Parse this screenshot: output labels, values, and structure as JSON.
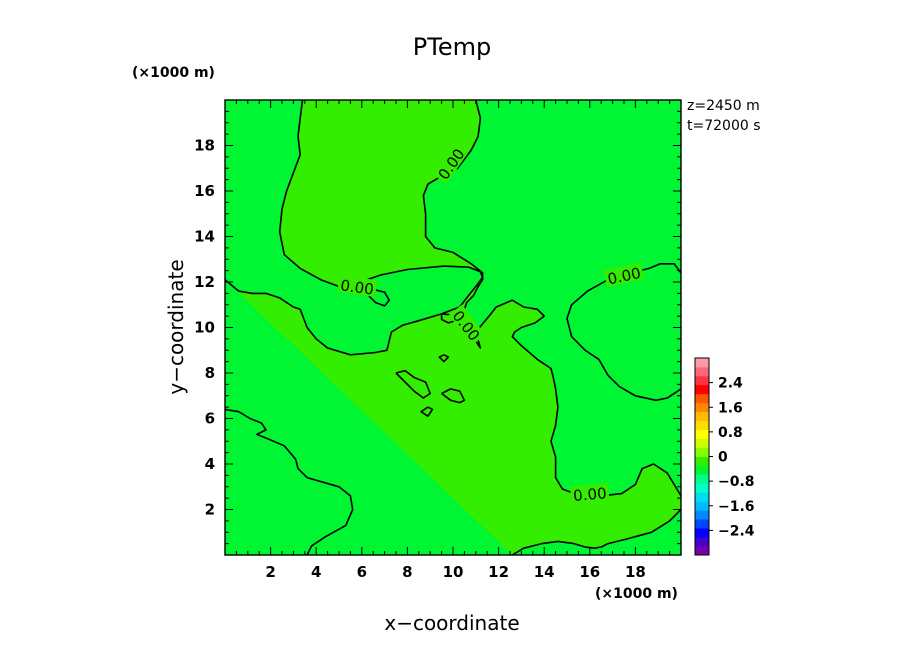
{
  "chart_data": {
    "type": "heatmap",
    "title": "PTemp",
    "xlabel": "x−coordinate",
    "ylabel": "y−coordinate",
    "x_unit_label": "(×1000 m)",
    "y_unit_label": "(×1000 m)",
    "annotations": [
      "z=2450  m",
      "t=72000  s"
    ],
    "xlim": [
      0,
      20
    ],
    "ylim": [
      0,
      20
    ],
    "x_ticks": [
      2,
      4,
      6,
      8,
      10,
      12,
      14,
      16,
      18
    ],
    "y_ticks": [
      2,
      4,
      6,
      8,
      10,
      12,
      14,
      16,
      18
    ],
    "fill_colors": {
      "positive": "#33ee00",
      "negative": "#00f533"
    },
    "contour_level_label": "0.00",
    "contour_labels": [
      {
        "text": "0.00",
        "x": 9.9,
        "y": 17.2,
        "angle": -55
      },
      {
        "text": "0.00",
        "x": 5.8,
        "y": 11.8,
        "angle": 8
      },
      {
        "text": "0.00",
        "x": 17.5,
        "y": 12.3,
        "angle": -12
      },
      {
        "text": "0.00",
        "x": 10.6,
        "y": 10.1,
        "angle": 52
      },
      {
        "text": "0.00",
        "x": 16.0,
        "y": 2.7,
        "angle": -5
      }
    ],
    "contours": [
      [
        [
          3.4,
          20
        ],
        [
          3.3,
          19.2
        ],
        [
          3.2,
          18.4
        ],
        [
          3.3,
          17.6
        ],
        [
          3.0,
          16.8
        ],
        [
          2.7,
          16.0
        ],
        [
          2.5,
          15.2
        ],
        [
          2.4,
          14.2
        ],
        [
          2.6,
          13.2
        ],
        [
          3.3,
          12.6
        ],
        [
          4.2,
          12.1
        ],
        [
          5.0,
          11.8
        ],
        [
          5.8,
          11.95
        ],
        [
          6.8,
          12.3
        ],
        [
          8.0,
          12.55
        ],
        [
          9.6,
          12.7
        ],
        [
          10.7,
          12.65
        ],
        [
          11.2,
          12.45
        ],
        [
          11.3,
          12.2
        ],
        [
          11.0,
          11.8
        ],
        [
          10.6,
          11.3
        ],
        [
          10.3,
          10.9
        ],
        [
          9.5,
          10.6
        ],
        [
          8.5,
          10.3
        ],
        [
          7.8,
          10.1
        ],
        [
          7.3,
          9.8
        ],
        [
          7.1,
          9.0
        ],
        [
          6.6,
          8.9
        ],
        [
          5.5,
          8.8
        ],
        [
          4.5,
          9.1
        ],
        [
          4.0,
          9.5
        ],
        [
          3.6,
          10.0
        ],
        [
          3.3,
          10.8
        ],
        [
          3.0,
          10.9
        ],
        [
          2.4,
          11.3
        ],
        [
          1.8,
          11.5
        ],
        [
          1.2,
          11.5
        ],
        [
          0.6,
          11.6
        ],
        [
          0,
          12.1
        ]
      ],
      [
        [
          11.0,
          20
        ],
        [
          11.2,
          19.2
        ],
        [
          11.1,
          18.4
        ],
        [
          10.8,
          17.8
        ],
        [
          10.2,
          17.0
        ],
        [
          9.4,
          16.6
        ],
        [
          8.9,
          16.3
        ],
        [
          8.7,
          15.8
        ],
        [
          8.8,
          15.0
        ],
        [
          8.8,
          14.0
        ],
        [
          9.2,
          13.5
        ],
        [
          10.0,
          13.3
        ],
        [
          10.8,
          12.8
        ],
        [
          11.3,
          12.4
        ],
        [
          11.3,
          12.1
        ],
        [
          11.1,
          11.8
        ],
        [
          10.9,
          11.4
        ],
        [
          10.6,
          11.1
        ],
        [
          10.5,
          10.8
        ],
        [
          10.6,
          10.5
        ],
        [
          10.8,
          10.0
        ],
        [
          11.0,
          9.4
        ],
        [
          11.2,
          9.1
        ],
        [
          11.0,
          9.8
        ],
        [
          11.5,
          10.4
        ],
        [
          11.9,
          10.9
        ],
        [
          12.6,
          11.2
        ],
        [
          13.1,
          10.9
        ],
        [
          13.7,
          10.8
        ],
        [
          14.0,
          10.5
        ],
        [
          13.6,
          10.2
        ],
        [
          13.0,
          10.0
        ],
        [
          12.7,
          9.8
        ],
        [
          12.6,
          9.6
        ],
        [
          13.0,
          9.2
        ],
        [
          13.7,
          8.6
        ],
        [
          14.3,
          8.2
        ],
        [
          14.4,
          7.8
        ],
        [
          14.5,
          7.3
        ],
        [
          14.6,
          6.5
        ],
        [
          14.5,
          5.7
        ],
        [
          14.3,
          5.0
        ],
        [
          14.5,
          4.3
        ],
        [
          14.5,
          3.4
        ],
        [
          14.8,
          2.9
        ],
        [
          15.6,
          2.6
        ],
        [
          16.5,
          2.6
        ],
        [
          17.4,
          2.7
        ],
        [
          18.0,
          3.1
        ],
        [
          18.3,
          3.8
        ],
        [
          18.8,
          4.0
        ],
        [
          19.4,
          3.6
        ],
        [
          20,
          2.6
        ]
      ],
      [
        [
          20,
          12.4
        ],
        [
          19.7,
          12.8
        ],
        [
          19.1,
          12.8
        ],
        [
          18.6,
          12.6
        ],
        [
          17.8,
          12.4
        ],
        [
          16.8,
          12.1
        ],
        [
          15.9,
          11.6
        ],
        [
          15.2,
          11.0
        ],
        [
          15.0,
          10.4
        ],
        [
          15.2,
          9.6
        ],
        [
          15.8,
          9.0
        ],
        [
          16.4,
          8.6
        ],
        [
          16.8,
          7.9
        ],
        [
          17.3,
          7.4
        ],
        [
          18.0,
          7.0
        ],
        [
          18.9,
          6.8
        ],
        [
          19.4,
          6.9
        ],
        [
          20,
          7.3
        ]
      ],
      [
        [
          0,
          6.4
        ],
        [
          0.6,
          6.3
        ],
        [
          1.1,
          6.0
        ],
        [
          1.6,
          5.8
        ],
        [
          1.8,
          5.5
        ],
        [
          1.4,
          5.3
        ],
        [
          1.9,
          5.1
        ],
        [
          2.6,
          4.8
        ],
        [
          3.1,
          4.2
        ],
        [
          3.2,
          3.8
        ],
        [
          3.6,
          3.4
        ],
        [
          4.3,
          3.2
        ],
        [
          5.0,
          3.0
        ],
        [
          5.5,
          2.6
        ],
        [
          5.6,
          2.0
        ],
        [
          5.3,
          1.3
        ],
        [
          4.4,
          0.8
        ],
        [
          3.8,
          0.4
        ],
        [
          3.6,
          0
        ]
      ],
      [
        [
          12.6,
          0
        ],
        [
          13.1,
          0.3
        ],
        [
          13.9,
          0.5
        ],
        [
          14.6,
          0.6
        ],
        [
          15.3,
          0.5
        ],
        [
          15.8,
          0.35
        ],
        [
          16.2,
          0.3
        ],
        [
          16.5,
          0.35
        ],
        [
          16.8,
          0.5
        ],
        [
          17.6,
          0.7
        ],
        [
          18.7,
          1.0
        ],
        [
          19.5,
          1.5
        ],
        [
          20,
          2.0
        ]
      ],
      [
        [
          7.5,
          8.0
        ],
        [
          7.9,
          8.1
        ],
        [
          8.3,
          7.8
        ],
        [
          8.8,
          7.6
        ],
        [
          9.0,
          7.1
        ],
        [
          8.7,
          6.9
        ],
        [
          8.3,
          7.2
        ],
        [
          7.9,
          7.6
        ],
        [
          7.5,
          8.0
        ]
      ],
      [
        [
          9.5,
          7.1
        ],
        [
          9.9,
          7.3
        ],
        [
          10.3,
          7.2
        ],
        [
          10.5,
          6.8
        ],
        [
          10.3,
          6.7
        ],
        [
          9.9,
          6.8
        ],
        [
          9.5,
          7.1
        ]
      ],
      [
        [
          8.9,
          6.5
        ],
        [
          9.1,
          6.4
        ],
        [
          8.9,
          6.1
        ],
        [
          8.6,
          6.3
        ],
        [
          8.9,
          6.5
        ]
      ],
      [
        [
          9.6,
          8.8
        ],
        [
          9.8,
          8.7
        ],
        [
          9.6,
          8.5
        ],
        [
          9.4,
          8.7
        ],
        [
          9.6,
          8.8
        ]
      ],
      [
        [
          6.4,
          11.7
        ],
        [
          7.0,
          11.55
        ],
        [
          7.2,
          11.2
        ],
        [
          7.0,
          10.95
        ],
        [
          6.6,
          11.1
        ],
        [
          6.3,
          11.4
        ],
        [
          6.4,
          11.7
        ]
      ],
      [
        [
          9.5,
          10.6
        ],
        [
          10.0,
          10.55
        ],
        [
          10.1,
          10.3
        ],
        [
          9.8,
          10.2
        ],
        [
          9.5,
          10.35
        ],
        [
          9.5,
          10.6
        ]
      ]
    ],
    "colorbar": {
      "ticks": [
        "2.4",
        "1.6",
        "0.8",
        "0",
        "−0.8",
        "−1.6",
        "−2.4"
      ],
      "range": [
        -3.2,
        3.2
      ],
      "colors": [
        "#7700aa",
        "#4400cc",
        "#0000ff",
        "#0044ff",
        "#0088ff",
        "#00bbff",
        "#00ddee",
        "#00ffcc",
        "#00ff88",
        "#00f533",
        "#33ee00",
        "#88ff00",
        "#ccff00",
        "#ffff00",
        "#ffdd00",
        "#ffbb00",
        "#ff8800",
        "#ff5500",
        "#ff0000",
        "#ff3344",
        "#ff6677",
        "#ff99aa"
      ]
    }
  }
}
